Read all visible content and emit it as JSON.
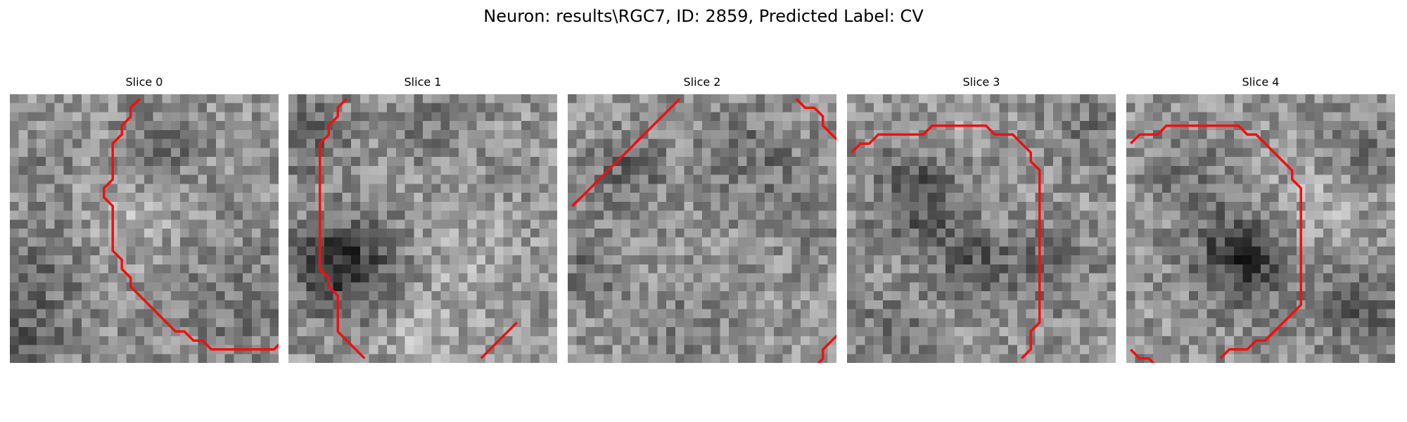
{
  "figure": {
    "title": "Neuron: results\\RGC7, ID: 2859, Predicted Label: CV"
  },
  "slices": [
    {
      "label": "Slice 0",
      "contour": [
        [
          14,
          0
        ],
        [
          13,
          1
        ],
        [
          13,
          2
        ],
        [
          12,
          3
        ],
        [
          12,
          4
        ],
        [
          11,
          5
        ],
        [
          11,
          6
        ],
        [
          11,
          7
        ],
        [
          11,
          8
        ],
        [
          11,
          9
        ],
        [
          10,
          10
        ],
        [
          10,
          11
        ],
        [
          11,
          12
        ],
        [
          11,
          13
        ],
        [
          11,
          14
        ],
        [
          11,
          15
        ],
        [
          11,
          16
        ],
        [
          11,
          17
        ],
        [
          12,
          18
        ],
        [
          12,
          19
        ],
        [
          13,
          20
        ],
        [
          13,
          21
        ],
        [
          14,
          22
        ],
        [
          15,
          23
        ],
        [
          16,
          24
        ],
        [
          17,
          25
        ],
        [
          18,
          26
        ],
        [
          19,
          26
        ],
        [
          20,
          27
        ],
        [
          21,
          27
        ],
        [
          22,
          28
        ],
        [
          23,
          28
        ],
        [
          24,
          28
        ],
        [
          25,
          28
        ],
        [
          26,
          28
        ],
        [
          27,
          28
        ],
        [
          28,
          28
        ],
        [
          29,
          28
        ],
        [
          30,
          27
        ],
        [
          31,
          27
        ]
      ]
    },
    {
      "label": "Slice 1",
      "contour": [
        [
          6,
          0
        ],
        [
          5,
          1
        ],
        [
          5,
          2
        ],
        [
          4,
          3
        ],
        [
          4,
          4
        ],
        [
          3,
          5
        ],
        [
          3,
          6
        ],
        [
          3,
          7
        ],
        [
          3,
          8
        ],
        [
          3,
          9
        ],
        [
          3,
          10
        ],
        [
          3,
          11
        ],
        [
          3,
          12
        ],
        [
          3,
          13
        ],
        [
          3,
          14
        ],
        [
          3,
          15
        ],
        [
          3,
          16
        ],
        [
          3,
          17
        ],
        [
          3,
          18
        ],
        [
          3,
          19
        ],
        [
          4,
          20
        ],
        [
          4,
          21
        ],
        [
          5,
          22
        ],
        [
          5,
          23
        ],
        [
          5,
          24
        ],
        [
          5,
          25
        ],
        [
          5,
          26
        ],
        [
          6,
          27
        ],
        [
          7,
          28
        ],
        [
          8,
          29
        ]
      ]
    },
    {
      "label": "Slice 2",
      "contour": [
        [
          12,
          0
        ],
        [
          11,
          1
        ],
        [
          10,
          2
        ],
        [
          9,
          3
        ],
        [
          8,
          4
        ],
        [
          7,
          5
        ],
        [
          6,
          6
        ],
        [
          5,
          7
        ],
        [
          4,
          8
        ],
        [
          3,
          9
        ],
        [
          2,
          10
        ],
        [
          1,
          11
        ],
        [
          0,
          12
        ]
      ]
    },
    {
      "label": "Slice 3",
      "contour": [
        [
          0,
          6
        ],
        [
          1,
          5
        ],
        [
          2,
          5
        ],
        [
          3,
          4
        ],
        [
          4,
          4
        ],
        [
          5,
          4
        ],
        [
          6,
          4
        ],
        [
          7,
          4
        ],
        [
          8,
          4
        ],
        [
          9,
          3
        ],
        [
          10,
          3
        ],
        [
          11,
          3
        ],
        [
          12,
          3
        ],
        [
          13,
          3
        ],
        [
          14,
          3
        ],
        [
          15,
          3
        ],
        [
          16,
          4
        ],
        [
          17,
          4
        ],
        [
          18,
          4
        ],
        [
          19,
          5
        ],
        [
          20,
          6
        ],
        [
          20,
          7
        ],
        [
          21,
          8
        ],
        [
          21,
          9
        ],
        [
          21,
          10
        ],
        [
          21,
          11
        ],
        [
          21,
          12
        ],
        [
          21,
          13
        ],
        [
          21,
          14
        ],
        [
          21,
          15
        ],
        [
          21,
          16
        ],
        [
          21,
          17
        ],
        [
          21,
          18
        ],
        [
          21,
          19
        ],
        [
          21,
          20
        ],
        [
          21,
          21
        ],
        [
          21,
          22
        ],
        [
          21,
          23
        ],
        [
          21,
          24
        ],
        [
          21,
          25
        ],
        [
          20,
          26
        ],
        [
          20,
          27
        ],
        [
          20,
          28
        ],
        [
          19,
          29
        ]
      ]
    },
    {
      "label": "Slice 4",
      "contour": [
        [
          0,
          5
        ],
        [
          1,
          4
        ],
        [
          2,
          4
        ],
        [
          3,
          4
        ],
        [
          4,
          3
        ],
        [
          5,
          3
        ],
        [
          6,
          3
        ],
        [
          7,
          3
        ],
        [
          8,
          3
        ],
        [
          9,
          3
        ],
        [
          10,
          3
        ],
        [
          11,
          3
        ],
        [
          12,
          3
        ],
        [
          13,
          4
        ],
        [
          14,
          4
        ],
        [
          15,
          5
        ],
        [
          16,
          6
        ],
        [
          17,
          7
        ],
        [
          18,
          8
        ],
        [
          18,
          9
        ],
        [
          19,
          10
        ],
        [
          19,
          11
        ],
        [
          19,
          12
        ],
        [
          19,
          13
        ],
        [
          19,
          14
        ],
        [
          19,
          15
        ],
        [
          19,
          16
        ],
        [
          19,
          17
        ],
        [
          19,
          18
        ],
        [
          19,
          19
        ],
        [
          19,
          20
        ],
        [
          19,
          21
        ],
        [
          19,
          22
        ],
        [
          19,
          23
        ],
        [
          18,
          24
        ],
        [
          17,
          25
        ],
        [
          16,
          26
        ],
        [
          15,
          27
        ],
        [
          14,
          27
        ],
        [
          13,
          28
        ],
        [
          12,
          28
        ],
        [
          11,
          28
        ],
        [
          10,
          29
        ]
      ]
    }
  ],
  "extra_contours": {
    "slice1": [
      [
        25,
        25
      ],
      [
        24,
        26
      ],
      [
        23,
        27
      ],
      [
        22,
        28
      ],
      [
        21,
        29
      ]
    ],
    "slice2_top": [
      [
        25,
        0
      ],
      [
        26,
        1
      ],
      [
        27,
        1
      ],
      [
        28,
        2
      ],
      [
        28,
        3
      ],
      [
        29,
        4
      ],
      [
        30,
        5
      ]
    ],
    "slice2_bottom": [
      [
        30,
        26
      ],
      [
        29,
        27
      ],
      [
        28,
        28
      ],
      [
        28,
        29
      ],
      [
        27,
        30
      ]
    ],
    "slice4_bottom": [
      [
        0,
        28
      ],
      [
        1,
        29
      ],
      [
        2,
        29
      ],
      [
        3,
        30
      ]
    ]
  },
  "colors": {
    "contour": "#ee1111"
  }
}
